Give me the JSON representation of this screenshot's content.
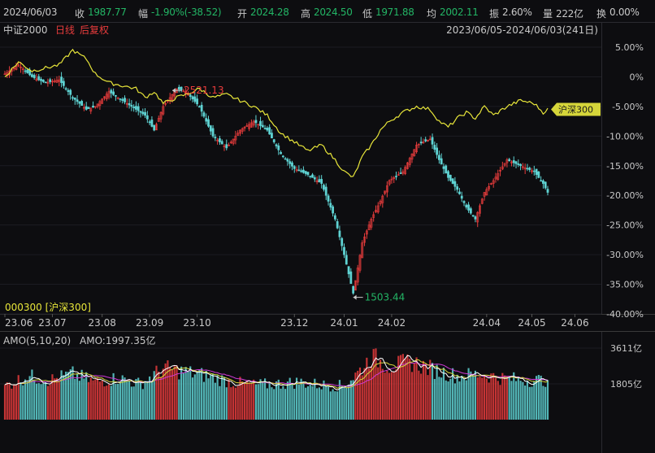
{
  "header": {
    "date": "2024/06/03",
    "close_label": "收",
    "close_value": "1987.77",
    "change_label": "幅",
    "change_value": "-1.90%(-38.52)",
    "open_label": "开",
    "open_value": "2024.28",
    "high_label": "高",
    "high_value": "2024.50",
    "low_label": "低",
    "low_value": "1971.88",
    "avg_label": "均",
    "avg_value": "2002.11",
    "amplitude_label": "振",
    "amplitude_value": "2.60%",
    "volume_label": "量",
    "volume_value": "222亿",
    "turnover_label": "换",
    "turnover_value": "0.00%"
  },
  "colors": {
    "up": "#e83c3c",
    "down": "#5fd3d3",
    "benchmark": "#e8e63a",
    "ma5": "#ffffff",
    "ma10": "#d6d63a",
    "ma20": "#d03ad6",
    "annotation": "#e83c3c",
    "annotation_low": "#23b565"
  },
  "chart_data": [
    {
      "type": "candlestick",
      "instrument": "中证2000",
      "period_label": "日线",
      "adjust_label": "后复权",
      "range_label": "2023/06/05-2024/06/03(241日)",
      "y_tick_labels": [
        "5.00%",
        "0%",
        "-5.00%",
        "-10.00%",
        "-15.00%",
        "-20.00%",
        "-25.00%",
        "-30.00%",
        "-35.00%",
        "-40.00%"
      ],
      "ylim": [
        -40,
        5
      ],
      "x_tick_labels": [
        "23.06",
        "23.07",
        "23.08",
        "23.09",
        "23.10",
        "23.12",
        "24.01",
        "24.02",
        "24.04",
        "24.05",
        "24.06"
      ],
      "annotations": [
        {
          "text": "2521.13",
          "kind": "high",
          "x_index": 74,
          "y_pct": -2.3
        },
        {
          "text": "1503.44",
          "kind": "low",
          "x_index": 154,
          "y_pct": -37.2
        }
      ],
      "key_points": [
        {
          "i": 0,
          "v": 0.5
        },
        {
          "i": 6,
          "v": 2.0
        },
        {
          "i": 12,
          "v": 0.0
        },
        {
          "i": 18,
          "v": -1.0
        },
        {
          "i": 24,
          "v": -0.5
        },
        {
          "i": 30,
          "v": -3.5
        },
        {
          "i": 36,
          "v": -5.5
        },
        {
          "i": 40,
          "v": -5.0
        },
        {
          "i": 46,
          "v": -2.5
        },
        {
          "i": 52,
          "v": -4.0
        },
        {
          "i": 58,
          "v": -5.5
        },
        {
          "i": 62,
          "v": -6.5
        },
        {
          "i": 66,
          "v": -9.0
        },
        {
          "i": 70,
          "v": -5.0
        },
        {
          "i": 76,
          "v": -2.0
        },
        {
          "i": 80,
          "v": -2.5
        },
        {
          "i": 86,
          "v": -5.0
        },
        {
          "i": 92,
          "v": -10.0
        },
        {
          "i": 98,
          "v": -12.0
        },
        {
          "i": 104,
          "v": -9.0
        },
        {
          "i": 110,
          "v": -7.5
        },
        {
          "i": 116,
          "v": -9.0
        },
        {
          "i": 122,
          "v": -13.0
        },
        {
          "i": 128,
          "v": -15.5
        },
        {
          "i": 134,
          "v": -16.5
        },
        {
          "i": 140,
          "v": -18.0
        },
        {
          "i": 146,
          "v": -24.0
        },
        {
          "i": 150,
          "v": -30.0
        },
        {
          "i": 154,
          "v": -36.5
        },
        {
          "i": 158,
          "v": -28.0
        },
        {
          "i": 162,
          "v": -24.0
        },
        {
          "i": 166,
          "v": -21.0
        },
        {
          "i": 170,
          "v": -17.5
        },
        {
          "i": 176,
          "v": -16.0
        },
        {
          "i": 182,
          "v": -11.5
        },
        {
          "i": 188,
          "v": -10.5
        },
        {
          "i": 192,
          "v": -14.0
        },
        {
          "i": 196,
          "v": -17.0
        },
        {
          "i": 200,
          "v": -19.0
        },
        {
          "i": 204,
          "v": -22.0
        },
        {
          "i": 208,
          "v": -24.0
        },
        {
          "i": 212,
          "v": -19.5
        },
        {
          "i": 216,
          "v": -17.5
        },
        {
          "i": 222,
          "v": -14.0
        },
        {
          "i": 228,
          "v": -15.0
        },
        {
          "i": 234,
          "v": -16.0
        },
        {
          "i": 238,
          "v": -18.0
        },
        {
          "i": 240,
          "v": -19.5
        }
      ],
      "benchmark": {
        "name": "沪深300",
        "code": "000300",
        "code_label": "000300 [沪深300]",
        "tag": "沪深300",
        "key_points": [
          {
            "i": 0,
            "v": 0.0
          },
          {
            "i": 6,
            "v": 2.5
          },
          {
            "i": 12,
            "v": 1.0
          },
          {
            "i": 18,
            "v": 1.5
          },
          {
            "i": 24,
            "v": 2.0
          },
          {
            "i": 30,
            "v": 4.5
          },
          {
            "i": 36,
            "v": 3.0
          },
          {
            "i": 40,
            "v": 0.5
          },
          {
            "i": 46,
            "v": -1.0
          },
          {
            "i": 52,
            "v": -1.5
          },
          {
            "i": 58,
            "v": -2.0
          },
          {
            "i": 62,
            "v": -3.5
          },
          {
            "i": 66,
            "v": -2.5
          },
          {
            "i": 70,
            "v": -4.5
          },
          {
            "i": 76,
            "v": -3.5
          },
          {
            "i": 80,
            "v": -3.0
          },
          {
            "i": 86,
            "v": -2.0
          },
          {
            "i": 92,
            "v": -3.5
          },
          {
            "i": 98,
            "v": -3.0
          },
          {
            "i": 104,
            "v": -4.0
          },
          {
            "i": 110,
            "v": -5.0
          },
          {
            "i": 116,
            "v": -6.5
          },
          {
            "i": 122,
            "v": -9.5
          },
          {
            "i": 128,
            "v": -11.0
          },
          {
            "i": 134,
            "v": -12.5
          },
          {
            "i": 140,
            "v": -11.5
          },
          {
            "i": 146,
            "v": -14.0
          },
          {
            "i": 150,
            "v": -16.0
          },
          {
            "i": 154,
            "v": -17.0
          },
          {
            "i": 158,
            "v": -13.5
          },
          {
            "i": 162,
            "v": -11.5
          },
          {
            "i": 166,
            "v": -9.0
          },
          {
            "i": 170,
            "v": -7.5
          },
          {
            "i": 176,
            "v": -6.0
          },
          {
            "i": 182,
            "v": -5.0
          },
          {
            "i": 188,
            "v": -5.5
          },
          {
            "i": 192,
            "v": -7.5
          },
          {
            "i": 196,
            "v": -8.5
          },
          {
            "i": 200,
            "v": -7.0
          },
          {
            "i": 204,
            "v": -6.0
          },
          {
            "i": 208,
            "v": -7.0
          },
          {
            "i": 212,
            "v": -5.0
          },
          {
            "i": 216,
            "v": -6.5
          },
          {
            "i": 222,
            "v": -5.0
          },
          {
            "i": 228,
            "v": -4.0
          },
          {
            "i": 234,
            "v": -4.5
          },
          {
            "i": 238,
            "v": -6.0
          },
          {
            "i": 240,
            "v": -5.5
          }
        ]
      }
    },
    {
      "type": "bar",
      "indicator_label": "AMO(5,10,20)",
      "value_label": "AMO:1997.35亿",
      "y_tick_labels": [
        "3611亿",
        "1805亿"
      ],
      "ylim": [
        0,
        3611
      ],
      "key_points": [
        {
          "i": 0,
          "v": 1700
        },
        {
          "i": 10,
          "v": 2200
        },
        {
          "i": 20,
          "v": 2000
        },
        {
          "i": 30,
          "v": 2300
        },
        {
          "i": 40,
          "v": 1900
        },
        {
          "i": 50,
          "v": 2100
        },
        {
          "i": 60,
          "v": 1800
        },
        {
          "i": 70,
          "v": 2600
        },
        {
          "i": 80,
          "v": 2400
        },
        {
          "i": 90,
          "v": 2200
        },
        {
          "i": 100,
          "v": 1900
        },
        {
          "i": 110,
          "v": 1750
        },
        {
          "i": 120,
          "v": 1800
        },
        {
          "i": 130,
          "v": 1900
        },
        {
          "i": 140,
          "v": 1750
        },
        {
          "i": 150,
          "v": 1700
        },
        {
          "i": 158,
          "v": 2600
        },
        {
          "i": 162,
          "v": 3200
        },
        {
          "i": 170,
          "v": 2700
        },
        {
          "i": 180,
          "v": 2900
        },
        {
          "i": 190,
          "v": 2500
        },
        {
          "i": 200,
          "v": 2200
        },
        {
          "i": 210,
          "v": 2300
        },
        {
          "i": 220,
          "v": 2100
        },
        {
          "i": 230,
          "v": 2000
        },
        {
          "i": 240,
          "v": 1997
        }
      ]
    }
  ]
}
